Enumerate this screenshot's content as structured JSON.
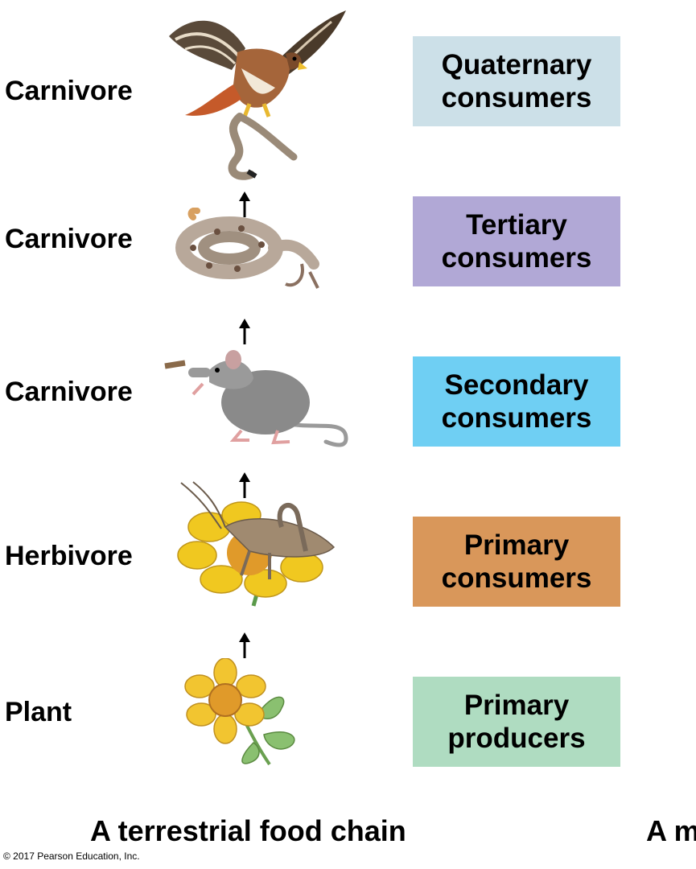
{
  "levels": [
    {
      "role": "Carnivore",
      "level_line1": "Quaternary",
      "level_line2": "consumers",
      "color": "#cce0e8",
      "organism_icon": "hawk-icon"
    },
    {
      "role": "Carnivore",
      "level_line1": "Tertiary",
      "level_line2": "consumers",
      "color": "#b1a8d6",
      "organism_icon": "snake-icon"
    },
    {
      "role": "Carnivore",
      "level_line1": "Secondary",
      "level_line2": "consumers",
      "color": "#6fcff3",
      "organism_icon": "mouse-icon"
    },
    {
      "role": "Herbivore",
      "level_line1": "Primary",
      "level_line2": "consumers",
      "color": "#d9975a",
      "organism_icon": "grasshopper-icon"
    },
    {
      "role": "Plant",
      "level_line1": "Primary",
      "level_line2": "producers",
      "color": "#afdcc1",
      "organism_icon": "flower-icon"
    }
  ],
  "caption": "A terrestrial food chain",
  "caption_cut": "A m",
  "copyright": "© 2017 Pearson Education, Inc."
}
